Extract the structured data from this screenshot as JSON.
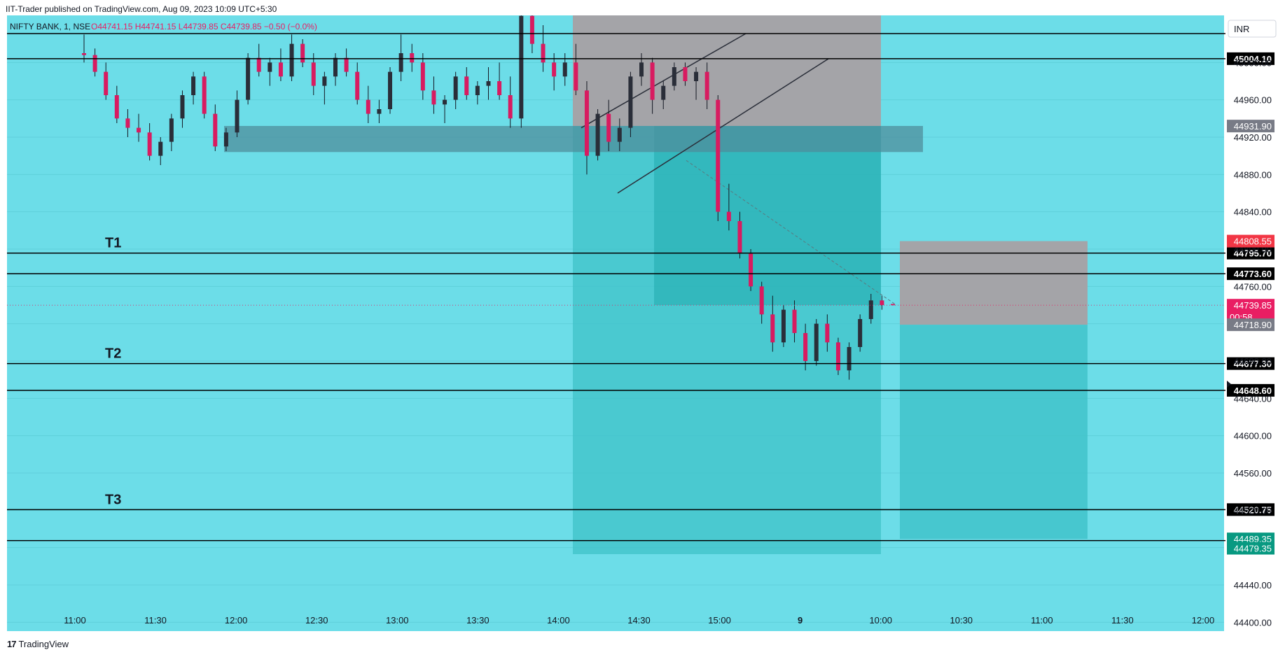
{
  "header": {
    "publish_line": "IIT-Trader published on TradingView.com, Aug 09, 2023 10:09 UTC+5:30"
  },
  "footer": {
    "logo_glyph": "17",
    "brand": "TradingView"
  },
  "chart_data": {
    "type": "candlestick",
    "symbol_line": "NIFTY BANK, 1, NSE",
    "ohlc_line": "O44741.15 H44741.15 L44739.85 C44739.85 −0.50 (−0.0%)",
    "currency": "INR",
    "background_color": "#6cdde8",
    "candle_color": "#d81b60",
    "wick_color": "#131722",
    "price_axis": {
      "ticks": [
        "44400.00",
        "44440.00",
        "44480.00",
        "44520.00",
        "44560.00",
        "44600.00",
        "44640.00",
        "44680.00",
        "44720.00",
        "44760.00",
        "44800.00",
        "44840.00",
        "44880.00",
        "44920.00",
        "44960.00",
        "45000.00"
      ],
      "range": [
        44380,
        45040
      ]
    },
    "time_axis": {
      "ticks": [
        "11:00",
        "11:30",
        "12:00",
        "12:30",
        "13:00",
        "13:30",
        "14:00",
        "14:30",
        "15:00",
        "9",
        "10:00",
        "10:30",
        "11:00",
        "11:30",
        "12:00"
      ],
      "session_break_label": "9"
    },
    "horizontal_lines": [
      {
        "price": 45031.0,
        "label": "",
        "value": ""
      },
      {
        "price": 45004.1,
        "label": "",
        "value": "45004.10"
      },
      {
        "price": 44795.7,
        "label": "T1",
        "value": "44795.70"
      },
      {
        "price": 44773.6,
        "label": "",
        "value": "44773.60"
      },
      {
        "price": 44677.3,
        "label": "T2",
        "value": "44677.30"
      },
      {
        "price": 44648.6,
        "label": "",
        "value": "44648.60"
      },
      {
        "price": 44520.75,
        "label": "T3",
        "value": "44520.75"
      },
      {
        "price": 44487.5,
        "label": "",
        "value": "44487.50"
      }
    ],
    "price_badges": [
      {
        "price": 44931.9,
        "value": "44931.90",
        "color": "#787b86"
      },
      {
        "price": 44808.55,
        "value": "44808.55",
        "color": "#f23645"
      },
      {
        "price": 44739.85,
        "value": "44739.85",
        "sub": "00:58",
        "color": "#e91e63"
      },
      {
        "price": 44718.9,
        "value": "44718.90",
        "color": "#787b86"
      },
      {
        "price": 44489.35,
        "value": "44489.35",
        "color": "#089981"
      },
      {
        "price": 44479.35,
        "value": "44479.35",
        "color": "#089981"
      }
    ],
    "zones": [
      {
        "name": "supply-zone",
        "price_top": 44932,
        "price_bottom": 44904,
        "color": "#5a8fa0"
      },
      {
        "name": "short-position-1",
        "entry": 44930,
        "stop": 45040,
        "target": 44479
      },
      {
        "name": "short-position-2",
        "entry": 44719,
        "stop": 44808,
        "target": 44489
      }
    ],
    "candles": [
      {
        "o": 45010,
        "h": 45030,
        "l": 45000,
        "c": 45008
      },
      {
        "o": 45008,
        "h": 45015,
        "l": 44985,
        "c": 44990
      },
      {
        "o": 44990,
        "h": 45000,
        "l": 44960,
        "c": 44965
      },
      {
        "o": 44965,
        "h": 44975,
        "l": 44935,
        "c": 44940
      },
      {
        "o": 44940,
        "h": 44950,
        "l": 44920,
        "c": 44930
      },
      {
        "o": 44930,
        "h": 44945,
        "l": 44915,
        "c": 44925
      },
      {
        "o": 44925,
        "h": 44935,
        "l": 44895,
        "c": 44900
      },
      {
        "o": 44900,
        "h": 44920,
        "l": 44890,
        "c": 44915
      },
      {
        "o": 44915,
        "h": 44945,
        "l": 44905,
        "c": 44940
      },
      {
        "o": 44940,
        "h": 44970,
        "l": 44930,
        "c": 44965
      },
      {
        "o": 44965,
        "h": 44990,
        "l": 44955,
        "c": 44985
      },
      {
        "o": 44985,
        "h": 44990,
        "l": 44940,
        "c": 44945
      },
      {
        "o": 44945,
        "h": 44955,
        "l": 44905,
        "c": 44910
      },
      {
        "o": 44910,
        "h": 44930,
        "l": 44905,
        "c": 44925
      },
      {
        "o": 44925,
        "h": 44970,
        "l": 44920,
        "c": 44960
      },
      {
        "o": 44960,
        "h": 45010,
        "l": 44955,
        "c": 45005
      },
      {
        "o": 45005,
        "h": 45020,
        "l": 44985,
        "c": 44990
      },
      {
        "o": 44990,
        "h": 45005,
        "l": 44975,
        "c": 45000
      },
      {
        "o": 45000,
        "h": 45015,
        "l": 44980,
        "c": 44985
      },
      {
        "o": 44985,
        "h": 45030,
        "l": 44980,
        "c": 45020
      },
      {
        "o": 45020,
        "h": 45025,
        "l": 44995,
        "c": 45000
      },
      {
        "o": 45000,
        "h": 45010,
        "l": 44965,
        "c": 44975
      },
      {
        "o": 44975,
        "h": 44990,
        "l": 44955,
        "c": 44985
      },
      {
        "o": 44985,
        "h": 45010,
        "l": 44975,
        "c": 45005
      },
      {
        "o": 45005,
        "h": 45015,
        "l": 44985,
        "c": 44990
      },
      {
        "o": 44990,
        "h": 45000,
        "l": 44955,
        "c": 44960
      },
      {
        "o": 44960,
        "h": 44975,
        "l": 44935,
        "c": 44945
      },
      {
        "o": 44945,
        "h": 44960,
        "l": 44935,
        "c": 44950
      },
      {
        "o": 44950,
        "h": 44995,
        "l": 44945,
        "c": 44990
      },
      {
        "o": 44990,
        "h": 45030,
        "l": 44980,
        "c": 45010
      },
      {
        "o": 45010,
        "h": 45020,
        "l": 44990,
        "c": 45000
      },
      {
        "o": 45000,
        "h": 45010,
        "l": 44960,
        "c": 44970
      },
      {
        "o": 44970,
        "h": 44985,
        "l": 44945,
        "c": 44955
      },
      {
        "o": 44955,
        "h": 44965,
        "l": 44935,
        "c": 44960
      },
      {
        "o": 44960,
        "h": 44990,
        "l": 44950,
        "c": 44985
      },
      {
        "o": 44985,
        "h": 44995,
        "l": 44960,
        "c": 44965
      },
      {
        "o": 44965,
        "h": 44980,
        "l": 44955,
        "c": 44975
      },
      {
        "o": 44975,
        "h": 44995,
        "l": 44960,
        "c": 44980
      },
      {
        "o": 44980,
        "h": 45000,
        "l": 44960,
        "c": 44965
      },
      {
        "o": 44965,
        "h": 44985,
        "l": 44930,
        "c": 44940
      },
      {
        "o": 44940,
        "h": 45060,
        "l": 44930,
        "c": 45050
      },
      {
        "o": 45050,
        "h": 45060,
        "l": 45010,
        "c": 45020
      },
      {
        "o": 45020,
        "h": 45040,
        "l": 44990,
        "c": 45000
      },
      {
        "o": 45000,
        "h": 45010,
        "l": 44970,
        "c": 44985
      },
      {
        "o": 44985,
        "h": 45010,
        "l": 44975,
        "c": 45000
      },
      {
        "o": 45000,
        "h": 45020,
        "l": 44965,
        "c": 44970
      },
      {
        "o": 44970,
        "h": 44980,
        "l": 44880,
        "c": 44900
      },
      {
        "o": 44900,
        "h": 44950,
        "l": 44895,
        "c": 44945
      },
      {
        "o": 44945,
        "h": 44960,
        "l": 44905,
        "c": 44915
      },
      {
        "o": 44915,
        "h": 44940,
        "l": 44905,
        "c": 44930
      },
      {
        "o": 44930,
        "h": 44990,
        "l": 44920,
        "c": 44985
      },
      {
        "o": 44985,
        "h": 45010,
        "l": 44975,
        "c": 45000
      },
      {
        "o": 45000,
        "h": 45005,
        "l": 44945,
        "c": 44960
      },
      {
        "o": 44960,
        "h": 44980,
        "l": 44950,
        "c": 44975
      },
      {
        "o": 44975,
        "h": 45000,
        "l": 44970,
        "c": 44995
      },
      {
        "o": 44995,
        "h": 45000,
        "l": 44975,
        "c": 44980
      },
      {
        "o": 44980,
        "h": 44995,
        "l": 44960,
        "c": 44990
      },
      {
        "o": 44990,
        "h": 45000,
        "l": 44950,
        "c": 44960
      },
      {
        "o": 44960,
        "h": 44965,
        "l": 44830,
        "c": 44840
      },
      {
        "o": 44840,
        "h": 44870,
        "l": 44820,
        "c": 44830
      },
      {
        "o": 44830,
        "h": 44840,
        "l": 44790,
        "c": 44795
      },
      {
        "o": 44795,
        "h": 44800,
        "l": 44755,
        "c": 44760
      },
      {
        "o": 44760,
        "h": 44765,
        "l": 44720,
        "c": 44730
      },
      {
        "o": 44730,
        "h": 44750,
        "l": 44690,
        "c": 44700
      },
      {
        "o": 44700,
        "h": 44740,
        "l": 44695,
        "c": 44735
      },
      {
        "o": 44735,
        "h": 44745,
        "l": 44700,
        "c": 44710
      },
      {
        "o": 44710,
        "h": 44720,
        "l": 44670,
        "c": 44680
      },
      {
        "o": 44680,
        "h": 44725,
        "l": 44675,
        "c": 44720
      },
      {
        "o": 44720,
        "h": 44730,
        "l": 44690,
        "c": 44700
      },
      {
        "o": 44700,
        "h": 44705,
        "l": 44665,
        "c": 44670
      },
      {
        "o": 44670,
        "h": 44700,
        "l": 44660,
        "c": 44695
      },
      {
        "o": 44695,
        "h": 44730,
        "l": 44690,
        "c": 44725
      },
      {
        "o": 44725,
        "h": 44752,
        "l": 44720,
        "c": 44745
      },
      {
        "o": 44745,
        "h": 44750,
        "l": 44735,
        "c": 44740
      },
      {
        "o": 44741.15,
        "h": 44741.15,
        "l": 44739.85,
        "c": 44739.85
      }
    ]
  }
}
